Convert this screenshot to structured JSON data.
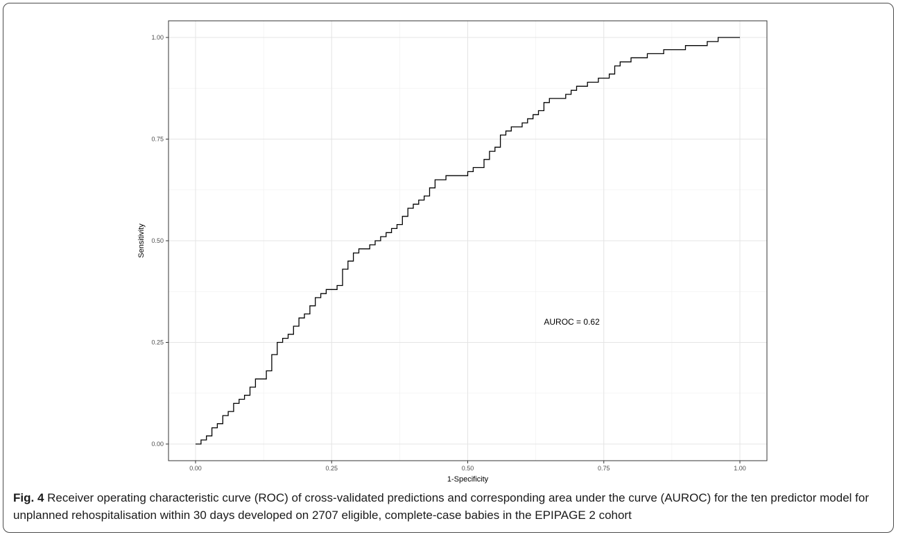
{
  "caption": {
    "label": "Fig. 4",
    "text": " Receiver operating characteristic curve (ROC) of cross-validated predictions and corresponding area under the curve (AUROC) for the ten predictor model for unplanned rehospitalisation within 30 days developed on 2707 eligible, complete-case babies in the EPIPAGE 2 cohort"
  },
  "chart_data": {
    "type": "line",
    "title": "",
    "xlabel": "1-Specificity",
    "ylabel": "Sensitivity",
    "xlim": [
      0,
      1
    ],
    "ylim": [
      0,
      1
    ],
    "xticks": [
      "0.00",
      "0.25",
      "0.50",
      "0.75",
      "1.00"
    ],
    "yticks": [
      "0.00",
      "0.25",
      "0.50",
      "0.75",
      "1.00"
    ],
    "grid": true,
    "line_style": "step",
    "annotation": {
      "text": "AUROC = 0.62",
      "x": 0.64,
      "y": 0.3
    },
    "series": [
      {
        "x": [
          0.0,
          0.01,
          0.02,
          0.03,
          0.04,
          0.05,
          0.06,
          0.07,
          0.08,
          0.09,
          0.1,
          0.11,
          0.12,
          0.13,
          0.14,
          0.15,
          0.16,
          0.17,
          0.18,
          0.19,
          0.2,
          0.21,
          0.22,
          0.23,
          0.24,
          0.25,
          0.26,
          0.27,
          0.28,
          0.29,
          0.3,
          0.31,
          0.32,
          0.33,
          0.34,
          0.35,
          0.36,
          0.37,
          0.38,
          0.39,
          0.4,
          0.41,
          0.42,
          0.43,
          0.44,
          0.45,
          0.46,
          0.47,
          0.48,
          0.49,
          0.5,
          0.51,
          0.52,
          0.53,
          0.54,
          0.55,
          0.56,
          0.57,
          0.58,
          0.59,
          0.6,
          0.61,
          0.62,
          0.63,
          0.64,
          0.65,
          0.66,
          0.67,
          0.68,
          0.69,
          0.7,
          0.71,
          0.72,
          0.73,
          0.74,
          0.75,
          0.76,
          0.77,
          0.78,
          0.79,
          0.8,
          0.81,
          0.82,
          0.83,
          0.84,
          0.85,
          0.86,
          0.87,
          0.88,
          0.89,
          0.9,
          0.91,
          0.92,
          0.93,
          0.94,
          0.95,
          0.96,
          0.97,
          0.98,
          0.99,
          1.0
        ],
        "y": [
          0.0,
          0.01,
          0.02,
          0.04,
          0.05,
          0.07,
          0.08,
          0.1,
          0.11,
          0.12,
          0.14,
          0.16,
          0.16,
          0.18,
          0.22,
          0.25,
          0.26,
          0.27,
          0.29,
          0.31,
          0.32,
          0.34,
          0.36,
          0.37,
          0.38,
          0.38,
          0.39,
          0.43,
          0.45,
          0.47,
          0.48,
          0.48,
          0.49,
          0.5,
          0.51,
          0.52,
          0.53,
          0.54,
          0.56,
          0.58,
          0.59,
          0.6,
          0.61,
          0.63,
          0.65,
          0.65,
          0.66,
          0.66,
          0.66,
          0.66,
          0.67,
          0.68,
          0.68,
          0.7,
          0.72,
          0.73,
          0.76,
          0.77,
          0.78,
          0.78,
          0.79,
          0.8,
          0.81,
          0.82,
          0.84,
          0.85,
          0.85,
          0.85,
          0.86,
          0.87,
          0.88,
          0.88,
          0.89,
          0.89,
          0.9,
          0.9,
          0.91,
          0.93,
          0.94,
          0.94,
          0.95,
          0.95,
          0.95,
          0.96,
          0.96,
          0.96,
          0.97,
          0.97,
          0.97,
          0.97,
          0.98,
          0.98,
          0.98,
          0.98,
          0.99,
          0.99,
          1.0,
          1.0,
          1.0,
          1.0,
          1.0
        ]
      }
    ]
  }
}
